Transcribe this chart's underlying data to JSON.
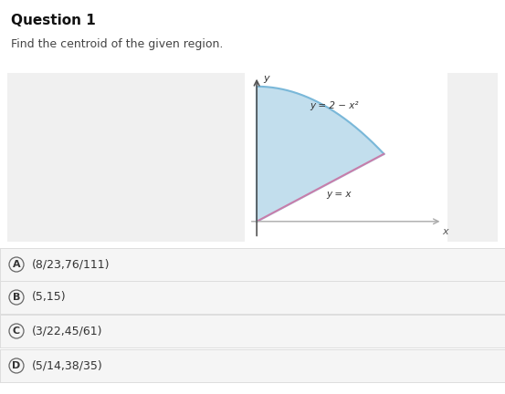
{
  "title": "Question 1",
  "subtitle": "Find the centroid of the given region.",
  "title_fontsize": 11,
  "subtitle_fontsize": 9,
  "background_color": "#ffffff",
  "panel_left_bg": "#f0f0f0",
  "panel_right_bg": "#f0f0f0",
  "graph_bg": "#ffffff",
  "fill_color": "#b8d9ea",
  "fill_alpha": 0.85,
  "curve1_label": "y = 2 − x²",
  "curve2_label": "y = x",
  "curve1_color": "#7ab8d9",
  "curve2_color": "#c77daa",
  "axis_color": "#555555",
  "xaxis_color": "#aaaaaa",
  "x_label": "x",
  "y_label": "y",
  "choices": [
    {
      "letter": "A",
      "text": "(8/23,76/111)"
    },
    {
      "letter": "B",
      "text": "(5,15)"
    },
    {
      "letter": "C",
      "text": "(3/22,45/61)"
    },
    {
      "letter": "D",
      "text": "(5/14,38/35)"
    }
  ],
  "choice_fontsize": 9,
  "choice_bg": "#f5f5f5",
  "choice_border": "#dddddd",
  "choice_text_color": "#333333",
  "circle_color": "#666666"
}
